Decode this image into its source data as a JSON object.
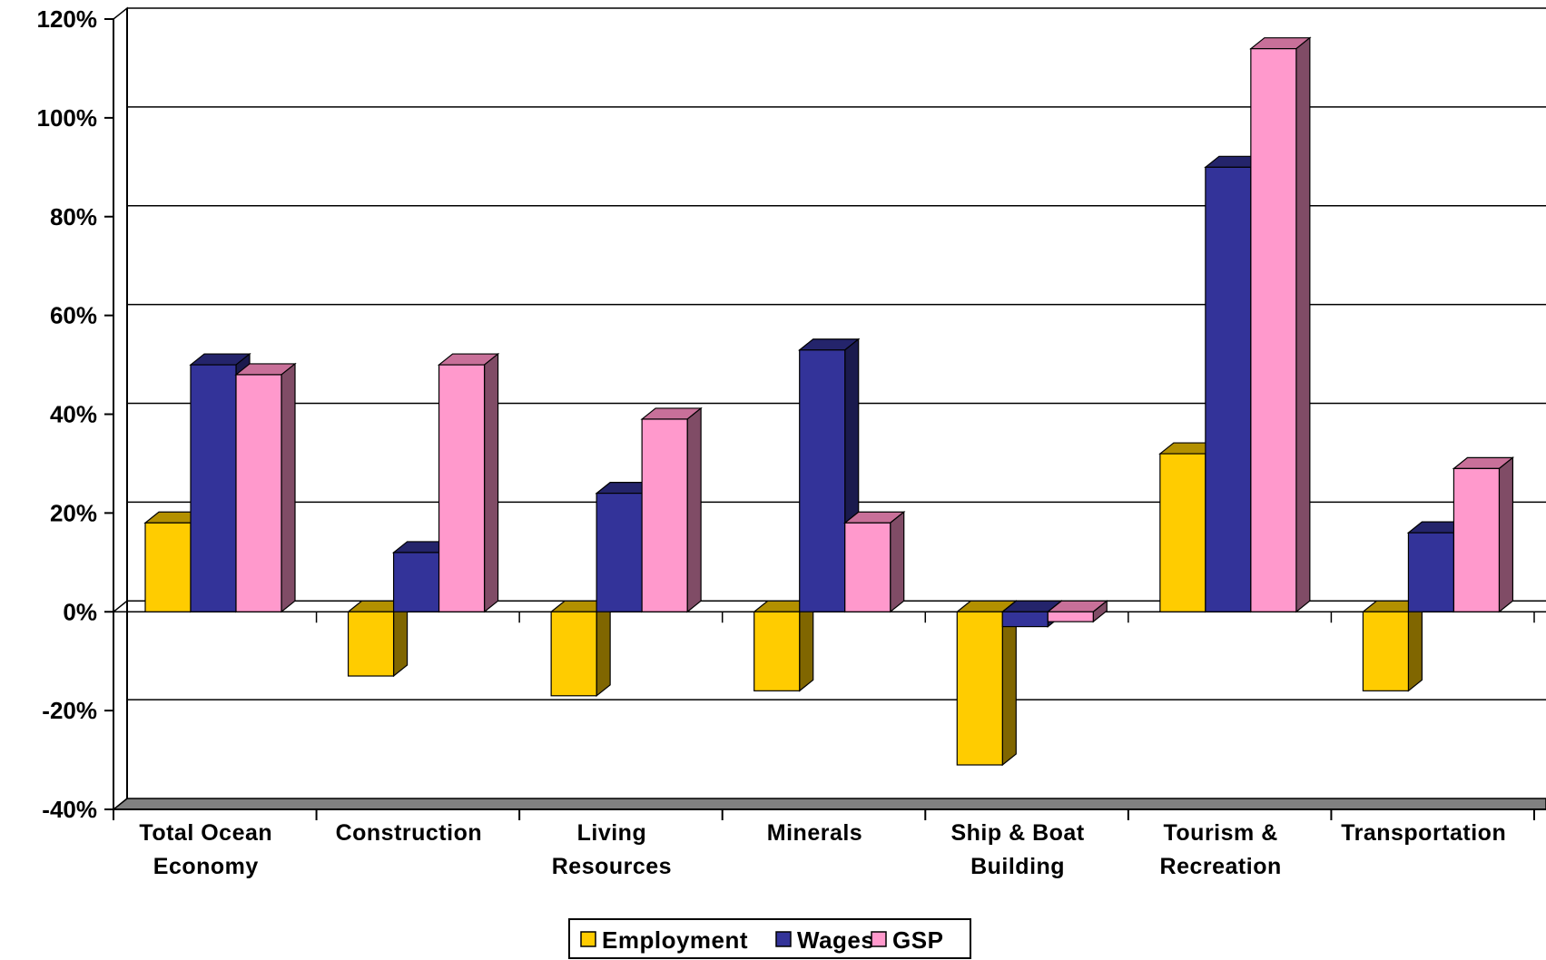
{
  "chart_data": {
    "type": "bar",
    "style": "3d-clustered-column",
    "categories": [
      [
        "Total Ocean",
        "Economy"
      ],
      [
        "Construction"
      ],
      [
        "Living",
        "Resources"
      ],
      [
        "Minerals"
      ],
      [
        "Ship & Boat",
        "Building"
      ],
      [
        "Tourism &",
        "Recreation"
      ],
      [
        "Transportation"
      ]
    ],
    "series": [
      {
        "name": "Employment",
        "color": "#FFCC00",
        "side": "#806600",
        "top": "#B39000",
        "values": [
          18,
          -13,
          -17,
          -16,
          -31,
          32,
          -16
        ]
      },
      {
        "name": "Wages",
        "color": "#333399",
        "side": "#1A1A4D",
        "top": "#24246B",
        "values": [
          50,
          12,
          24,
          53,
          -3,
          90,
          16
        ]
      },
      {
        "name": "GSP",
        "color": "#FF99CC",
        "side": "#804C66",
        "top": "#C87099",
        "values": [
          48,
          50,
          39,
          18,
          -2,
          114,
          29
        ]
      }
    ],
    "ylim": [
      -40,
      120
    ],
    "yticks": [
      -40,
      -20,
      0,
      20,
      40,
      60,
      80,
      100,
      120
    ],
    "ytick_labels": [
      "-40%",
      "-20%",
      "0%",
      "20%",
      "40%",
      "60%",
      "80%",
      "100%",
      "120%"
    ],
    "grid": true,
    "legend": {
      "position": "bottom-center"
    },
    "title": "",
    "xlabel": "",
    "ylabel": ""
  }
}
